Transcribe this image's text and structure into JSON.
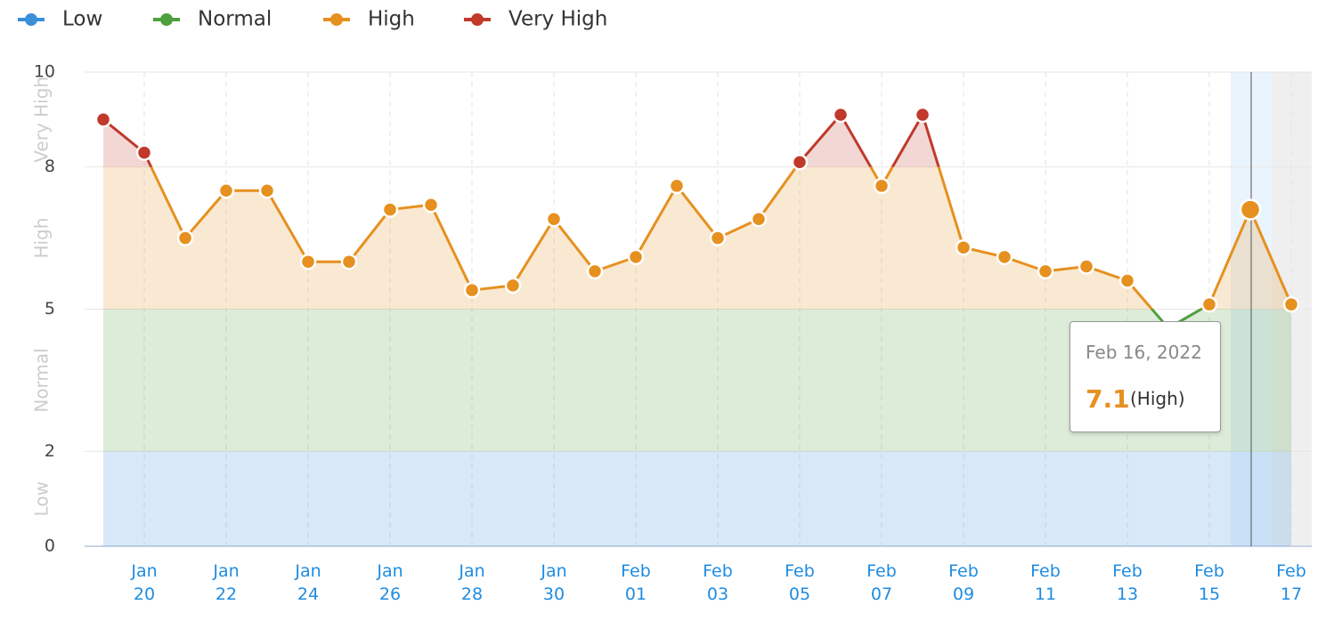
{
  "chart_data": {
    "type": "line",
    "categories": [
      null,
      "Jan 20",
      null,
      "Jan 22",
      null,
      "Jan 24",
      null,
      "Jan 26",
      null,
      "Jan 28",
      null,
      "Jan 30",
      null,
      "Feb 01",
      null,
      "Feb 03",
      null,
      "Feb 05",
      null,
      "Feb 07",
      null,
      "Feb 09",
      null,
      "Feb 11",
      null,
      "Feb 13",
      null,
      "Feb 15",
      null,
      "Feb 17"
    ],
    "values": [
      9.0,
      8.3,
      6.5,
      7.5,
      7.5,
      6.0,
      6.0,
      7.1,
      7.2,
      5.4,
      5.5,
      6.9,
      5.8,
      6.1,
      7.6,
      6.5,
      6.9,
      8.1,
      9.1,
      7.6,
      9.1,
      6.3,
      6.1,
      5.8,
      5.9,
      5.6,
      4.6,
      5.1,
      7.1,
      5.1
    ],
    "levels": [
      {
        "name": "Low",
        "color": "#3a8fd9",
        "from": 0,
        "to": 2
      },
      {
        "name": "Normal",
        "color": "#4e9f3d",
        "from": 2,
        "to": 5
      },
      {
        "name": "High",
        "color": "#e6901f",
        "from": 5,
        "to": 8
      },
      {
        "name": "Very High",
        "color": "#c0392b",
        "from": 8,
        "to": 10
      }
    ],
    "ylim": [
      0,
      10
    ],
    "yticks": [
      0,
      2,
      5,
      8,
      10
    ],
    "grid": true,
    "tooltip": {
      "date": "Feb 16, 2022",
      "level": "(High)"
    }
  }
}
